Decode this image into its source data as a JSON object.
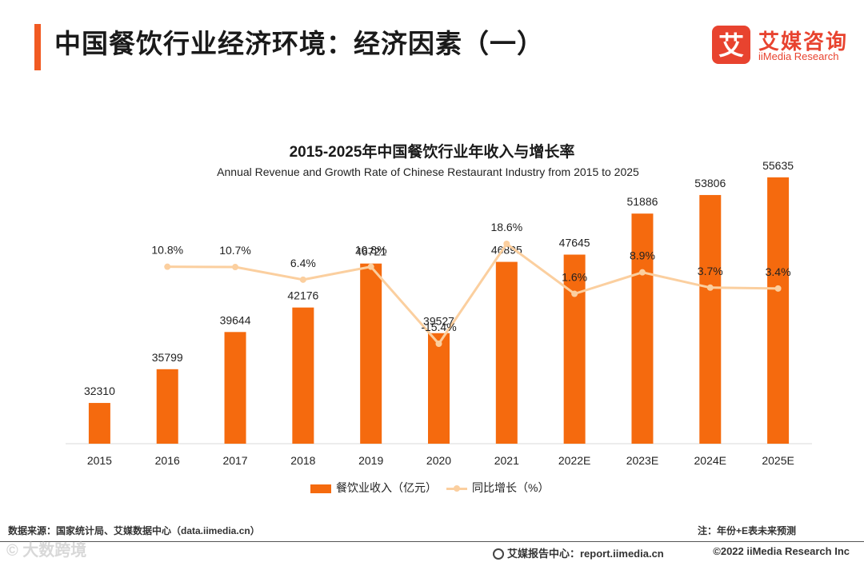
{
  "header": {
    "title": "中国餐饮行业经济环境：经济因素（一）",
    "logo_name": "艾媒咨询",
    "logo_sub": "iiMedia Research",
    "logo_glyph": "艾",
    "accent_color": "#f15a22"
  },
  "chart_data": {
    "type": "bar",
    "title": "2015-2025年中国餐饮行业年收入与增长率",
    "subtitle": "Annual Revenue and Growth Rate of Chinese Restaurant Industry from 2015 to 2025",
    "categories": [
      "2015",
      "2016",
      "2017",
      "2018",
      "2019",
      "2020",
      "2021",
      "2022E",
      "2023E",
      "2024E",
      "2025E"
    ],
    "series": [
      {
        "name": "餐饮业收入（亿元）",
        "type": "bar",
        "color": "#f56a0e",
        "values": [
          32310,
          35799,
          39644,
          42176,
          46721,
          39527,
          46895,
          47645,
          51886,
          53806,
          55635
        ],
        "labels": [
          "32310",
          "35799",
          "39644",
          "42176",
          "46721",
          "39527",
          "46895",
          "47645",
          "51886",
          "53806",
          "55635"
        ]
      },
      {
        "name": "同比增长（%）",
        "type": "line",
        "color": "#fbcf9f",
        "values": [
          null,
          10.8,
          10.7,
          6.4,
          10.8,
          -15.4,
          18.6,
          1.6,
          8.9,
          3.7,
          3.4
        ],
        "labels": [
          "",
          "10.8%",
          "10.7%",
          "6.4%",
          "10.8%",
          "-15.4%",
          "18.6%",
          "1.6%",
          "8.9%",
          "3.7%",
          "3.4%"
        ]
      }
    ],
    "legend": [
      "餐饮业收入（亿元）",
      "同比增长（%）"
    ],
    "legend_position": "bottom-center",
    "grid": false
  },
  "footer": {
    "source": "数据来源：国家统计局、艾媒数据中心（data.iimedia.cn）",
    "note": "注：年份+E表未来预测",
    "watermark": "© 大数跨境",
    "report": "艾媒报告中心：report.iimedia.cn",
    "copyright": "©2022  iiMedia Research  Inc"
  }
}
